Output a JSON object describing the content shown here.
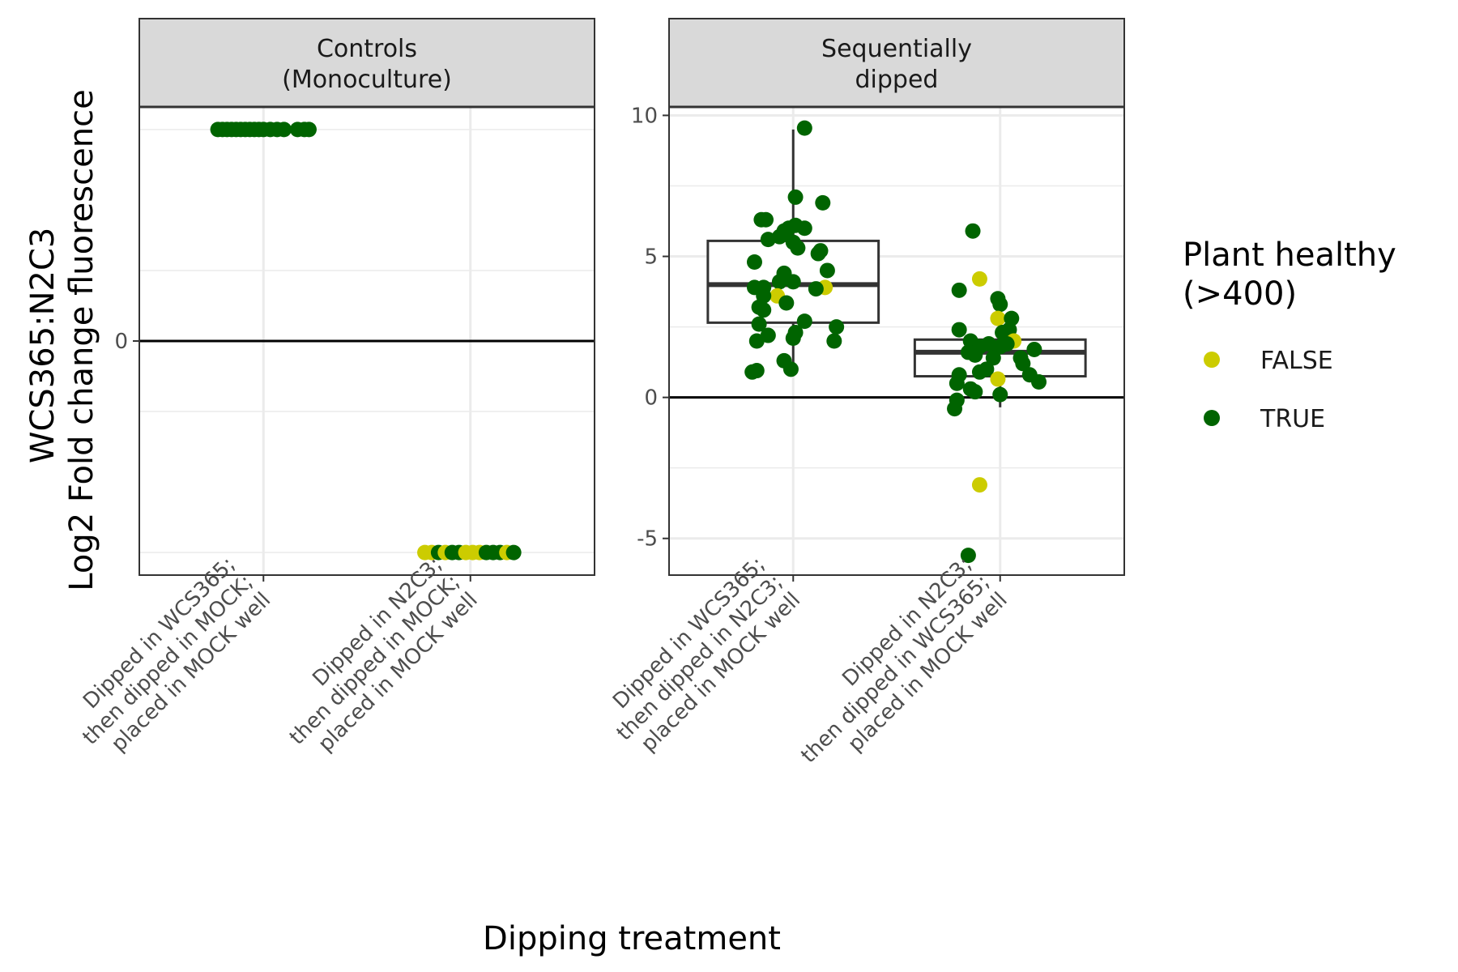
{
  "chart_data": {
    "type": "scatter",
    "xlabel": "Dipping treatment",
    "ylabel_lines": [
      "WCS365:N2C3",
      "Log2 Fold change fluorescence"
    ],
    "legend": {
      "title_lines": [
        "Plant healthy",
        "(>400)"
      ],
      "placement": "right",
      "items": [
        {
          "label": "FALSE",
          "color": "#cccc00"
        },
        {
          "label": "TRUE",
          "color": "#006400"
        }
      ]
    },
    "panels": [
      {
        "name": "controls",
        "strip_lines": [
          "Controls",
          "(Monoculture)"
        ],
        "ylim": [
          -8.3,
          8.3
        ],
        "y_ticks": [
          0
        ],
        "y_tick_labels": [
          "0"
        ],
        "categories": [
          {
            "label_lines": [
              "Dipped in WCS365;",
              "then dipped in MOCK;",
              "placed in MOCK well"
            ]
          },
          {
            "label_lines": [
              "Dipped in N2C3;",
              "then dipped in MOCK;",
              "placed in MOCK well"
            ]
          }
        ],
        "boxes": [],
        "points": [
          {
            "cat": 0,
            "jit": -0.2,
            "y": 7.5,
            "healthy": true
          },
          {
            "cat": 0,
            "jit": -0.18,
            "y": 7.5,
            "healthy": true
          },
          {
            "cat": 0,
            "jit": -0.16,
            "y": 7.5,
            "healthy": true
          },
          {
            "cat": 0,
            "jit": -0.14,
            "y": 7.5,
            "healthy": true
          },
          {
            "cat": 0,
            "jit": -0.12,
            "y": 7.5,
            "healthy": true
          },
          {
            "cat": 0,
            "jit": -0.1,
            "y": 7.5,
            "healthy": true
          },
          {
            "cat": 0,
            "jit": -0.08,
            "y": 7.5,
            "healthy": true
          },
          {
            "cat": 0,
            "jit": -0.06,
            "y": 7.5,
            "healthy": true
          },
          {
            "cat": 0,
            "jit": -0.04,
            "y": 7.5,
            "healthy": true
          },
          {
            "cat": 0,
            "jit": -0.02,
            "y": 7.5,
            "healthy": true
          },
          {
            "cat": 0,
            "jit": 0.0,
            "y": 7.5,
            "healthy": true
          },
          {
            "cat": 0,
            "jit": 0.03,
            "y": 7.5,
            "healthy": true
          },
          {
            "cat": 0,
            "jit": 0.06,
            "y": 7.5,
            "healthy": true
          },
          {
            "cat": 0,
            "jit": 0.09,
            "y": 7.5,
            "healthy": true
          },
          {
            "cat": 0,
            "jit": 0.15,
            "y": 7.5,
            "healthy": true
          },
          {
            "cat": 0,
            "jit": 0.18,
            "y": 7.5,
            "healthy": true
          },
          {
            "cat": 0,
            "jit": 0.2,
            "y": 7.5,
            "healthy": true
          },
          {
            "cat": 1,
            "jit": -0.2,
            "y": -7.5,
            "healthy": false
          },
          {
            "cat": 1,
            "jit": -0.17,
            "y": -7.5,
            "healthy": false
          },
          {
            "cat": 1,
            "jit": -0.14,
            "y": -7.5,
            "healthy": true
          },
          {
            "cat": 1,
            "jit": -0.11,
            "y": -7.5,
            "healthy": false
          },
          {
            "cat": 1,
            "jit": -0.08,
            "y": -7.5,
            "healthy": true
          },
          {
            "cat": 1,
            "jit": -0.05,
            "y": -7.5,
            "healthy": true
          },
          {
            "cat": 1,
            "jit": -0.02,
            "y": -7.5,
            "healthy": false
          },
          {
            "cat": 1,
            "jit": 0.01,
            "y": -7.5,
            "healthy": false
          },
          {
            "cat": 1,
            "jit": 0.04,
            "y": -7.5,
            "healthy": false
          },
          {
            "cat": 1,
            "jit": 0.07,
            "y": -7.5,
            "healthy": true
          },
          {
            "cat": 1,
            "jit": 0.1,
            "y": -7.5,
            "healthy": true
          },
          {
            "cat": 1,
            "jit": 0.13,
            "y": -7.5,
            "healthy": true
          },
          {
            "cat": 1,
            "jit": 0.16,
            "y": -7.5,
            "healthy": false
          },
          {
            "cat": 1,
            "jit": 0.19,
            "y": -7.5,
            "healthy": true
          }
        ]
      },
      {
        "name": "sequential",
        "strip_lines": [
          "Sequentially",
          "dipped"
        ],
        "ylim": [
          -6.3,
          10.3
        ],
        "y_ticks": [
          -5,
          0,
          5,
          10
        ],
        "y_tick_labels": [
          "-5",
          "0",
          "5",
          "10"
        ],
        "categories": [
          {
            "label_lines": [
              "Dipped in WCS365;",
              "then dipped in N2C3;",
              "placed in MOCK well"
            ]
          },
          {
            "label_lines": [
              "Dipped in N2C3;",
              "then dipped in WCS365;",
              "placed in MOCK well"
            ]
          }
        ],
        "boxes": [
          {
            "cat": 0,
            "lower_whisker": 1.0,
            "q1": 2.65,
            "median": 4.0,
            "q3": 5.55,
            "upper_whisker": 9.5
          },
          {
            "cat": 1,
            "lower_whisker": -0.35,
            "q1": 0.75,
            "median": 1.6,
            "q3": 2.05,
            "upper_whisker": 2.05
          }
        ],
        "points": [
          {
            "cat": 0,
            "jit": 0.05,
            "y": 9.55,
            "healthy": true
          },
          {
            "cat": 0,
            "jit": 0.01,
            "y": 7.1,
            "healthy": true
          },
          {
            "cat": 0,
            "jit": 0.13,
            "y": 6.9,
            "healthy": true
          },
          {
            "cat": 0,
            "jit": -0.14,
            "y": 6.3,
            "healthy": true
          },
          {
            "cat": 0,
            "jit": -0.12,
            "y": 6.3,
            "healthy": true
          },
          {
            "cat": 0,
            "jit": 0.01,
            "y": 6.1,
            "healthy": true
          },
          {
            "cat": 0,
            "jit": 0.05,
            "y": 6.0,
            "healthy": true
          },
          {
            "cat": 0,
            "jit": -0.04,
            "y": 5.9,
            "healthy": true
          },
          {
            "cat": 0,
            "jit": -0.02,
            "y": 6.0,
            "healthy": true
          },
          {
            "cat": 0,
            "jit": -0.06,
            "y": 5.7,
            "healthy": true
          },
          {
            "cat": 0,
            "jit": -0.11,
            "y": 5.6,
            "healthy": true
          },
          {
            "cat": 0,
            "jit": 0.0,
            "y": 5.5,
            "healthy": true
          },
          {
            "cat": 0,
            "jit": 0.02,
            "y": 5.3,
            "healthy": true
          },
          {
            "cat": 0,
            "jit": 0.11,
            "y": 5.1,
            "healthy": true
          },
          {
            "cat": 0,
            "jit": 0.12,
            "y": 5.2,
            "healthy": true
          },
          {
            "cat": 0,
            "jit": -0.17,
            "y": 4.8,
            "healthy": true
          },
          {
            "cat": 0,
            "jit": 0.15,
            "y": 4.5,
            "healthy": true
          },
          {
            "cat": 0,
            "jit": -0.04,
            "y": 4.4,
            "healthy": true
          },
          {
            "cat": 0,
            "jit": -0.06,
            "y": 4.1,
            "healthy": true
          },
          {
            "cat": 0,
            "jit": 0.0,
            "y": 4.1,
            "healthy": true
          },
          {
            "cat": 0,
            "jit": -0.17,
            "y": 3.9,
            "healthy": true
          },
          {
            "cat": 0,
            "jit": -0.13,
            "y": 3.9,
            "healthy": true
          },
          {
            "cat": 0,
            "jit": 0.14,
            "y": 3.9,
            "healthy": false
          },
          {
            "cat": 0,
            "jit": 0.1,
            "y": 3.85,
            "healthy": true
          },
          {
            "cat": 0,
            "jit": -0.07,
            "y": 3.6,
            "healthy": false
          },
          {
            "cat": 0,
            "jit": -0.13,
            "y": 3.6,
            "healthy": true
          },
          {
            "cat": 0,
            "jit": -0.03,
            "y": 3.35,
            "healthy": true
          },
          {
            "cat": 0,
            "jit": -0.15,
            "y": 3.2,
            "healthy": true
          },
          {
            "cat": 0,
            "jit": -0.13,
            "y": 3.1,
            "healthy": true
          },
          {
            "cat": 0,
            "jit": 0.05,
            "y": 2.7,
            "healthy": true
          },
          {
            "cat": 0,
            "jit": -0.15,
            "y": 2.6,
            "healthy": true
          },
          {
            "cat": 0,
            "jit": 0.19,
            "y": 2.5,
            "healthy": true
          },
          {
            "cat": 0,
            "jit": 0.01,
            "y": 2.3,
            "healthy": true
          },
          {
            "cat": 0,
            "jit": -0.11,
            "y": 2.2,
            "healthy": true
          },
          {
            "cat": 0,
            "jit": 0.0,
            "y": 2.1,
            "healthy": true
          },
          {
            "cat": 0,
            "jit": -0.16,
            "y": 2.0,
            "healthy": true
          },
          {
            "cat": 0,
            "jit": 0.18,
            "y": 2.0,
            "healthy": true
          },
          {
            "cat": 0,
            "jit": -0.04,
            "y": 1.3,
            "healthy": true
          },
          {
            "cat": 0,
            "jit": -0.01,
            "y": 1.0,
            "healthy": true
          },
          {
            "cat": 0,
            "jit": -0.16,
            "y": 0.95,
            "healthy": true
          },
          {
            "cat": 0,
            "jit": -0.18,
            "y": 0.9,
            "healthy": true
          },
          {
            "cat": 1,
            "jit": -0.12,
            "y": 5.9,
            "healthy": true
          },
          {
            "cat": 1,
            "jit": -0.09,
            "y": 4.2,
            "healthy": false
          },
          {
            "cat": 1,
            "jit": -0.18,
            "y": 3.8,
            "healthy": true
          },
          {
            "cat": 1,
            "jit": -0.01,
            "y": 3.5,
            "healthy": true
          },
          {
            "cat": 1,
            "jit": 0.0,
            "y": 3.3,
            "healthy": true
          },
          {
            "cat": 1,
            "jit": -0.01,
            "y": 2.8,
            "healthy": false
          },
          {
            "cat": 1,
            "jit": 0.05,
            "y": 2.8,
            "healthy": true
          },
          {
            "cat": 1,
            "jit": 0.04,
            "y": 2.4,
            "healthy": true
          },
          {
            "cat": 1,
            "jit": -0.18,
            "y": 2.4,
            "healthy": true
          },
          {
            "cat": 1,
            "jit": 0.01,
            "y": 2.3,
            "healthy": true
          },
          {
            "cat": 1,
            "jit": -0.05,
            "y": 1.9,
            "healthy": true
          },
          {
            "cat": 1,
            "jit": -0.13,
            "y": 2.0,
            "healthy": true
          },
          {
            "cat": 1,
            "jit": 0.06,
            "y": 2.0,
            "healthy": false
          },
          {
            "cat": 1,
            "jit": 0.03,
            "y": 1.9,
            "healthy": true
          },
          {
            "cat": 1,
            "jit": -0.09,
            "y": 1.8,
            "healthy": true
          },
          {
            "cat": 1,
            "jit": 0.0,
            "y": 1.8,
            "healthy": true
          },
          {
            "cat": 1,
            "jit": 0.15,
            "y": 1.7,
            "healthy": true
          },
          {
            "cat": 1,
            "jit": -0.14,
            "y": 1.6,
            "healthy": true
          },
          {
            "cat": 1,
            "jit": -0.11,
            "y": 1.5,
            "healthy": true
          },
          {
            "cat": 1,
            "jit": -0.03,
            "y": 1.4,
            "healthy": true
          },
          {
            "cat": 1,
            "jit": 0.09,
            "y": 1.4,
            "healthy": true
          },
          {
            "cat": 1,
            "jit": 0.1,
            "y": 1.2,
            "healthy": true
          },
          {
            "cat": 1,
            "jit": -0.06,
            "y": 1.0,
            "healthy": true
          },
          {
            "cat": 1,
            "jit": -0.09,
            "y": 0.9,
            "healthy": true
          },
          {
            "cat": 1,
            "jit": 0.13,
            "y": 0.8,
            "healthy": true
          },
          {
            "cat": 1,
            "jit": -0.18,
            "y": 0.8,
            "healthy": true
          },
          {
            "cat": 1,
            "jit": -0.01,
            "y": 0.65,
            "healthy": false
          },
          {
            "cat": 1,
            "jit": 0.17,
            "y": 0.55,
            "healthy": true
          },
          {
            "cat": 1,
            "jit": -0.19,
            "y": 0.5,
            "healthy": true
          },
          {
            "cat": 1,
            "jit": -0.13,
            "y": 0.3,
            "healthy": true
          },
          {
            "cat": 1,
            "jit": -0.11,
            "y": 0.2,
            "healthy": true
          },
          {
            "cat": 1,
            "jit": 0.0,
            "y": 0.1,
            "healthy": true
          },
          {
            "cat": 1,
            "jit": -0.19,
            "y": -0.1,
            "healthy": true
          },
          {
            "cat": 1,
            "jit": -0.2,
            "y": -0.4,
            "healthy": true
          },
          {
            "cat": 1,
            "jit": -0.09,
            "y": -3.1,
            "healthy": false
          },
          {
            "cat": 1,
            "jit": -0.14,
            "y": -5.6,
            "healthy": true
          }
        ]
      }
    ]
  }
}
